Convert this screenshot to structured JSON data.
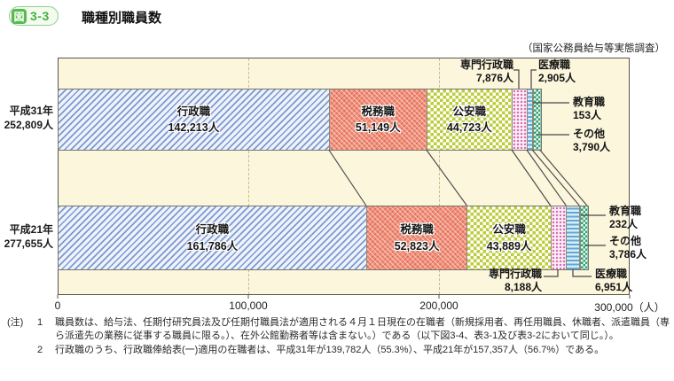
{
  "header": {
    "badge_prefix": "図",
    "badge_number": "3-3",
    "title": "職種別職員数",
    "source": "（国家公務員給与等実態調査）"
  },
  "chart_data": {
    "type": "bar",
    "orientation": "horizontal-stacked",
    "title": "職種別職員数",
    "unit": "人",
    "grid": "dashed-vertical",
    "legend_position": "none",
    "x_axis": {
      "min": 0,
      "max": 300000,
      "ticks": [
        {
          "value": 0,
          "label": "0"
        },
        {
          "value": 100000,
          "label": "100,000"
        },
        {
          "value": 200000,
          "label": "200,000"
        },
        {
          "value": 300000,
          "label": "300,000（人）"
        }
      ]
    },
    "categories": [
      "平成31年",
      "平成21年"
    ],
    "bars": [
      {
        "category": "平成31年",
        "total": 252809,
        "total_label": "252,809人",
        "segments": [
          {
            "name": "行政職",
            "value": 142213,
            "value_label": "142,213人",
            "pattern": "diag",
            "color": "#7e98cf",
            "label_inside": true
          },
          {
            "name": "税務職",
            "value": 51149,
            "value_label": "51,149人",
            "pattern": "cross",
            "color": "#f2907a",
            "label_inside": true
          },
          {
            "name": "公安職",
            "value": 44723,
            "value_label": "44,723人",
            "pattern": "checker",
            "color": "#bccd3c",
            "label_inside": true
          },
          {
            "name": "専門行政職",
            "value": 7876,
            "value_label": "7,876人",
            "pattern": "dots",
            "color": "#d66bb0",
            "label_inside": false
          },
          {
            "name": "医療職",
            "value": 2905,
            "value_label": "2,905人",
            "pattern": "hstripe",
            "color": "#5fa8d4",
            "label_inside": false
          },
          {
            "name": "教育職",
            "value": 153,
            "value_label": "153人",
            "pattern": "solid",
            "color": "#8f8f8f",
            "label_inside": false
          },
          {
            "name": "その他",
            "value": 3790,
            "value_label": "3,790人",
            "pattern": "gchecker",
            "color": "#2fa273",
            "label_inside": false
          }
        ]
      },
      {
        "category": "平成21年",
        "total": 277655,
        "total_label": "277,655人",
        "segments": [
          {
            "name": "行政職",
            "value": 161786,
            "value_label": "161,786人",
            "pattern": "diag",
            "color": "#7e98cf",
            "label_inside": true
          },
          {
            "name": "税務職",
            "value": 52823,
            "value_label": "52,823人",
            "pattern": "cross",
            "color": "#f2907a",
            "label_inside": true
          },
          {
            "name": "公安職",
            "value": 43889,
            "value_label": "43,889人",
            "pattern": "checker",
            "color": "#bccd3c",
            "label_inside": true
          },
          {
            "name": "専門行政職",
            "value": 8188,
            "value_label": "8,188人",
            "pattern": "dots",
            "color": "#d66bb0",
            "label_inside": false
          },
          {
            "name": "医療職",
            "value": 6951,
            "value_label": "6,951人",
            "pattern": "hstripe",
            "color": "#5fa8d4",
            "label_inside": false
          },
          {
            "name": "教育職",
            "value": 232,
            "value_label": "232人",
            "pattern": "solid",
            "color": "#8f8f8f",
            "label_inside": false
          },
          {
            "name": "その他",
            "value": 3786,
            "value_label": "3,786人",
            "pattern": "gchecker",
            "color": "#2fa273",
            "label_inside": false
          }
        ]
      }
    ],
    "colors": {
      "plot_background": "#fcf6dd",
      "gridline": "#ccb98c",
      "connector_line": "#454545",
      "badge_green": "#56bb4c"
    }
  },
  "notes": {
    "mark": "(注)",
    "items": [
      {
        "num": "1",
        "text": "職員数は、給与法、任期付研究員法及び任期付職員法が適用される４月１日現在の在職者（新規採用者、再任用職員、休職者、派遣職員（専ら派遣先の業務に従事する職員に限る。）、在外公館勤務者等は含まない。）である（以下図3-4、表3-1及び表3-2において同じ。）。"
      },
      {
        "num": "2",
        "text": "行政職のうち、行政職俸給表(一)適用の在職者は、平成31年が139,782人（55.3%）、平成21年が157,357人（56.7%）である。"
      }
    ]
  }
}
